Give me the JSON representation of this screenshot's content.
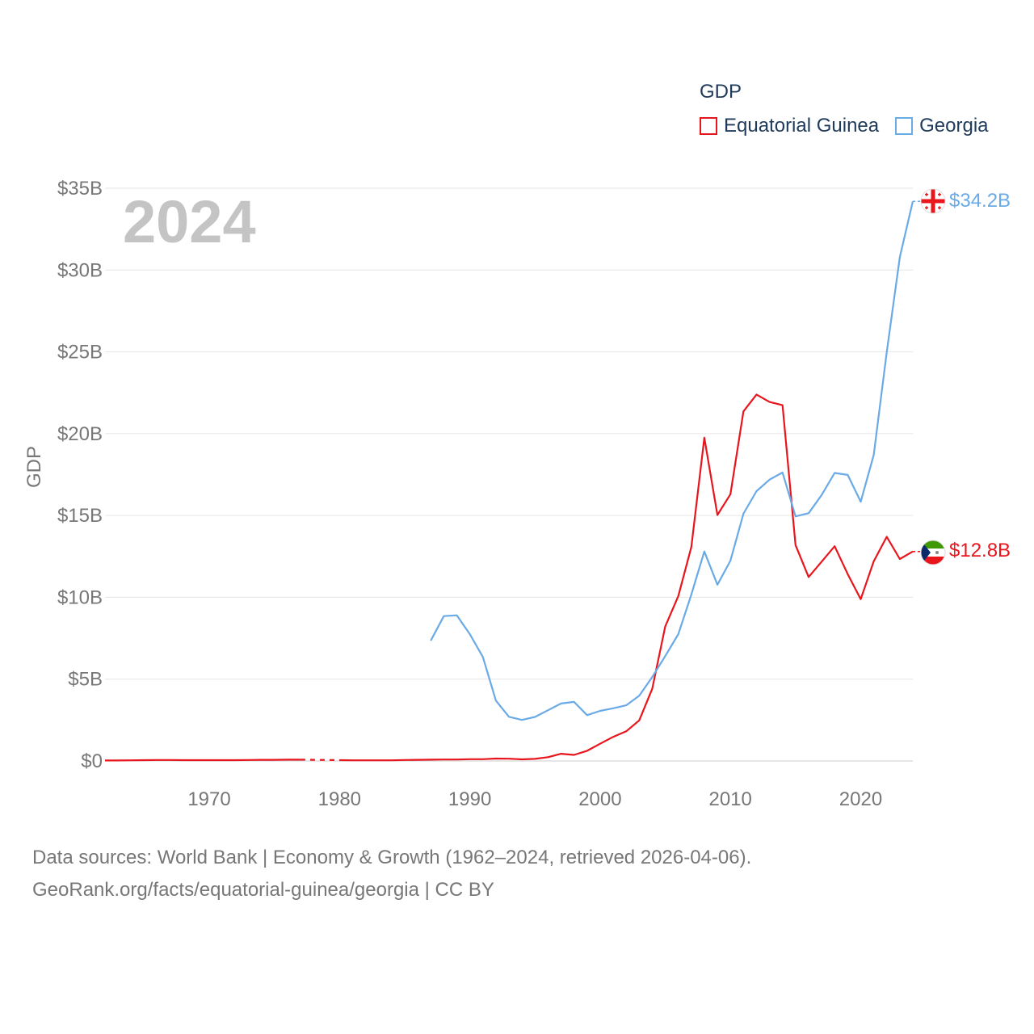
{
  "legend": {
    "title": "GDP",
    "items": [
      {
        "label": "Equatorial Guinea",
        "color": "#e8151d"
      },
      {
        "label": "Georgia",
        "color": "#6aaae6"
      }
    ]
  },
  "year_watermark": "2024",
  "footer": {
    "line1": "Data sources: World Bank | Economy & Growth (1962–2024, retrieved 2026-04-06).",
    "line2": "GeoRank.org/facts/equatorial-guinea/georgia | CC BY"
  },
  "chart_data": {
    "type": "line",
    "ylabel": "GDP",
    "xlabel": "",
    "xlim": [
      1962,
      2024
    ],
    "ylim": [
      0,
      35
    ],
    "y_unit": "billion USD",
    "grid": true,
    "xticks": [
      1970,
      1980,
      1990,
      2000,
      2010,
      2020
    ],
    "xtick_labels": [
      "1970",
      "1980",
      "1990",
      "2000",
      "2010",
      "2020"
    ],
    "yticks": [
      0,
      5,
      10,
      15,
      20,
      25,
      30,
      35
    ],
    "ytick_labels": [
      "$0",
      "$5B",
      "$10B",
      "$15B",
      "$20B",
      "$25B",
      "$30B",
      "$35B"
    ],
    "gap_note": "Equatorial Guinea has missing data 1978-1979 (shown dashed)",
    "series": [
      {
        "name": "Equatorial Guinea",
        "color": "#e8151d",
        "end_label": "$12.8B",
        "flag": "equatorial-guinea-flag-icon",
        "x": [
          1962,
          1963,
          1964,
          1965,
          1966,
          1967,
          1968,
          1969,
          1970,
          1971,
          1972,
          1973,
          1974,
          1975,
          1976,
          1977,
          1980,
          1981,
          1982,
          1983,
          1984,
          1985,
          1986,
          1987,
          1988,
          1989,
          1990,
          1991,
          1992,
          1993,
          1994,
          1995,
          1996,
          1997,
          1998,
          1999,
          2000,
          2001,
          2002,
          2003,
          2004,
          2005,
          2006,
          2007,
          2008,
          2009,
          2010,
          2011,
          2012,
          2013,
          2014,
          2015,
          2016,
          2017,
          2018,
          2019,
          2020,
          2021,
          2022,
          2023,
          2024
        ],
        "values": [
          0.03,
          0.03,
          0.04,
          0.05,
          0.06,
          0.06,
          0.05,
          0.05,
          0.05,
          0.05,
          0.05,
          0.06,
          0.07,
          0.07,
          0.08,
          0.08,
          0.05,
          0.04,
          0.04,
          0.04,
          0.04,
          0.06,
          0.07,
          0.08,
          0.09,
          0.09,
          0.11,
          0.11,
          0.15,
          0.14,
          0.1,
          0.13,
          0.23,
          0.44,
          0.37,
          0.62,
          1.05,
          1.47,
          1.81,
          2.48,
          4.41,
          8.22,
          10.08,
          13.07,
          19.75,
          15.03,
          16.3,
          21.36,
          22.39,
          21.94,
          21.74,
          13.19,
          11.24,
          12.18,
          13.12,
          11.42,
          9.89,
          12.2,
          13.7,
          12.34,
          12.8
        ]
      },
      {
        "name": "Georgia",
        "color": "#6aaae6",
        "end_label": "$34.2B",
        "flag": "georgia-flag-icon",
        "x": [
          1987,
          1988,
          1989,
          1990,
          1991,
          1992,
          1993,
          1994,
          1995,
          1996,
          1997,
          1998,
          1999,
          2000,
          2001,
          2002,
          2003,
          2004,
          2005,
          2006,
          2007,
          2008,
          2009,
          2010,
          2011,
          2012,
          2013,
          2014,
          2015,
          2016,
          2017,
          2018,
          2019,
          2020,
          2021,
          2022,
          2023,
          2024
        ],
        "values": [
          7.35,
          8.85,
          8.9,
          7.75,
          6.36,
          3.69,
          2.7,
          2.51,
          2.69,
          3.1,
          3.51,
          3.61,
          2.8,
          3.06,
          3.22,
          3.4,
          3.99,
          5.13,
          6.41,
          7.75,
          10.17,
          12.8,
          10.77,
          12.24,
          15.11,
          16.49,
          17.19,
          17.63,
          14.95,
          15.14,
          16.25,
          17.6,
          17.48,
          15.84,
          18.7,
          24.98,
          30.79,
          34.2
        ]
      }
    ]
  }
}
